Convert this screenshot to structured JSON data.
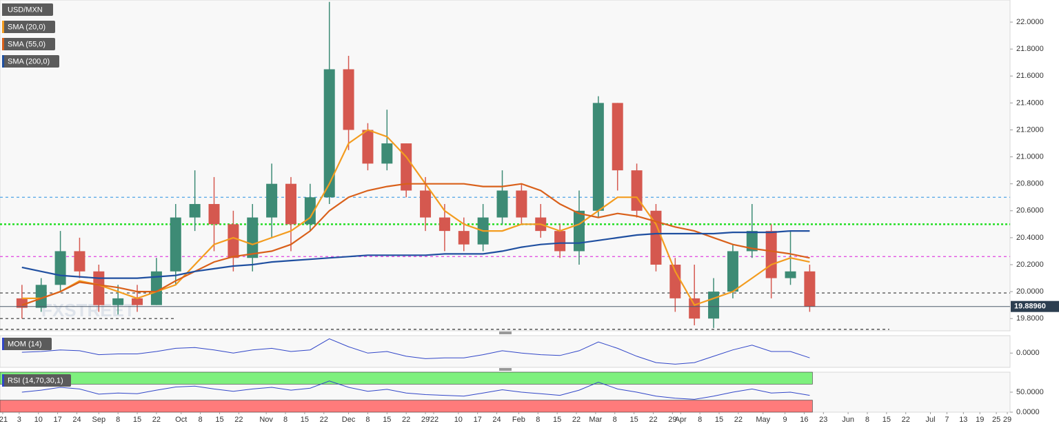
{
  "chart_data": [
    {
      "type": "candlestick",
      "name": "USD/MXN",
      "watermark": "FXSTREET",
      "x": [
        3,
        10,
        17,
        24,
        31,
        38,
        45,
        52,
        59,
        66,
        73,
        80,
        87,
        94,
        101,
        108,
        115,
        122,
        129,
        136,
        143,
        150,
        157,
        164,
        171,
        178,
        185,
        192,
        199,
        206,
        213,
        220,
        227,
        234,
        241,
        248,
        255,
        262,
        269,
        276,
        283,
        290
      ],
      "open": [
        19.95,
        19.88,
        20.05,
        20.3,
        20.15,
        19.9,
        19.95,
        19.9,
        20.15,
        20.55,
        20.65,
        20.5,
        20.25,
        20.55,
        20.8,
        20.5,
        20.7,
        21.65,
        21.2,
        20.95,
        21.1,
        20.75,
        20.55,
        20.45,
        20.35,
        20.55,
        20.75,
        20.55,
        20.45,
        20.3,
        20.6,
        21.4,
        20.9,
        20.6,
        20.2,
        19.95,
        19.8,
        20.0,
        20.3,
        20.45,
        20.1,
        20.15
      ],
      "high": [
        20.05,
        20.1,
        20.45,
        20.4,
        20.2,
        20.05,
        20.05,
        20.25,
        20.65,
        20.9,
        20.85,
        20.6,
        20.65,
        20.95,
        20.85,
        20.8,
        22.15,
        21.75,
        21.25,
        21.35,
        21.1,
        20.85,
        20.65,
        20.55,
        20.65,
        20.9,
        20.8,
        20.65,
        20.5,
        20.75,
        21.45,
        21.4,
        20.95,
        20.65,
        20.25,
        20.2,
        20.1,
        20.35,
        20.65,
        20.5,
        20.45,
        20.2
      ],
      "low": [
        19.8,
        19.85,
        20.0,
        20.1,
        19.85,
        19.83,
        19.85,
        19.9,
        20.05,
        20.45,
        20.3,
        20.15,
        20.15,
        20.4,
        20.3,
        20.45,
        20.65,
        21.05,
        20.9,
        20.9,
        20.7,
        20.45,
        20.3,
        20.3,
        20.3,
        20.5,
        20.5,
        20.4,
        20.25,
        20.2,
        20.55,
        20.75,
        20.55,
        20.15,
        19.85,
        19.75,
        19.73,
        19.95,
        20.25,
        19.95,
        20.05,
        19.85
      ],
      "close": [
        19.88,
        20.05,
        20.3,
        20.15,
        19.9,
        19.95,
        19.9,
        20.15,
        20.55,
        20.65,
        20.5,
        20.25,
        20.55,
        20.8,
        20.5,
        20.7,
        21.65,
        21.2,
        20.95,
        21.1,
        20.75,
        20.55,
        20.45,
        20.35,
        20.55,
        20.75,
        20.55,
        20.45,
        20.3,
        20.6,
        21.4,
        20.9,
        20.6,
        20.2,
        19.95,
        19.8,
        20.0,
        20.3,
        20.45,
        20.1,
        20.15,
        19.89
      ],
      "up_color": "#3d8b75",
      "down_color": "#d5584f",
      "series": [
        {
          "name": "SMA (20,0)",
          "color": "#f39c1f",
          "values": [
            19.95,
            19.95,
            20.0,
            20.08,
            20.05,
            20.0,
            19.95,
            20.0,
            20.05,
            20.2,
            20.35,
            20.4,
            20.35,
            20.4,
            20.45,
            20.55,
            20.8,
            21.1,
            21.2,
            21.15,
            21.0,
            20.8,
            20.6,
            20.5,
            20.45,
            20.45,
            20.5,
            20.5,
            20.45,
            20.5,
            20.6,
            20.7,
            20.7,
            20.5,
            20.15,
            19.9,
            19.95,
            20.0,
            20.1,
            20.2,
            20.25,
            20.22
          ]
        },
        {
          "name": "SMA (55,0)",
          "color": "#d9601a",
          "values": [
            19.9,
            19.95,
            20.0,
            20.07,
            20.05,
            20.03,
            20.0,
            20.0,
            20.08,
            20.15,
            20.22,
            20.26,
            20.28,
            20.3,
            20.35,
            20.45,
            20.6,
            20.7,
            20.75,
            20.78,
            20.8,
            20.8,
            20.8,
            20.8,
            20.78,
            20.78,
            20.8,
            20.75,
            20.65,
            20.58,
            20.55,
            20.58,
            20.56,
            20.52,
            20.48,
            20.45,
            20.4,
            20.35,
            20.32,
            20.3,
            20.28,
            20.25
          ]
        },
        {
          "name": "SMA (200,0)",
          "color": "#1f4fa0",
          "values": [
            20.18,
            20.15,
            20.12,
            20.11,
            20.1,
            20.1,
            20.1,
            20.11,
            20.12,
            20.15,
            20.17,
            20.19,
            20.2,
            20.22,
            20.23,
            20.24,
            20.25,
            20.26,
            20.27,
            20.27,
            20.27,
            20.27,
            20.28,
            20.28,
            20.28,
            20.3,
            20.33,
            20.35,
            20.36,
            20.36,
            20.38,
            20.4,
            20.42,
            20.43,
            20.43,
            20.43,
            20.43,
            20.44,
            20.44,
            20.44,
            20.45,
            20.45
          ]
        }
      ],
      "levels": [
        {
          "value": 20.7,
          "color": "#4da3e6",
          "style": "dashed"
        },
        {
          "value": 20.5,
          "color": "#22dd22",
          "style": "dotted"
        },
        {
          "value": 20.26,
          "color": "#e040e0",
          "style": "dashed"
        },
        {
          "value": 19.99,
          "color": "#333333",
          "style": "dashed"
        },
        {
          "value": 19.8,
          "color": "#333333",
          "style": "dashed",
          "x_end": 59
        },
        {
          "value": 19.72,
          "color": "#333333",
          "style": "dashed",
          "x_end": 319
        }
      ],
      "last_price": {
        "value": 19.8896,
        "label": "19.88960"
      },
      "xlim": [
        -5,
        363
      ],
      "ylim": [
        19.709,
        22.164
      ],
      "yticks": [
        {
          "value": 22,
          "label": "22.0000"
        },
        {
          "value": 21.8,
          "label": "21.8000"
        },
        {
          "value": 21.6,
          "label": "21.6000"
        },
        {
          "value": 21.4,
          "label": "21.4000"
        },
        {
          "value": 21.2,
          "label": "21.2000"
        },
        {
          "value": 21,
          "label": "21.0000"
        },
        {
          "value": 20.8,
          "label": "20.8000"
        },
        {
          "value": 20.6,
          "label": "20.6000"
        },
        {
          "value": 20.4,
          "label": "20.4000"
        },
        {
          "value": 20.2,
          "label": "20.2000"
        },
        {
          "value": 20,
          "label": "20.0000"
        },
        {
          "value": 19.8,
          "label": "19.8000"
        }
      ]
    },
    {
      "type": "line",
      "x": [
        3,
        10,
        17,
        24,
        31,
        38,
        45,
        52,
        59,
        66,
        73,
        80,
        87,
        94,
        101,
        108,
        115,
        122,
        129,
        136,
        143,
        150,
        157,
        164,
        171,
        178,
        185,
        192,
        199,
        206,
        213,
        220,
        227,
        234,
        241,
        248,
        255,
        262,
        269,
        276,
        283,
        290
      ],
      "series": [
        {
          "name": "MOM (14)",
          "color": "#3045c8",
          "values": [
            0.05,
            0.1,
            0.2,
            0.15,
            -0.1,
            -0.05,
            -0.05,
            0.1,
            0.3,
            0.35,
            0.2,
            0.0,
            0.2,
            0.3,
            0.1,
            0.2,
            0.9,
            0.4,
            0.0,
            0.1,
            -0.2,
            -0.35,
            -0.3,
            -0.3,
            -0.1,
            0.15,
            0.0,
            -0.1,
            -0.15,
            0.15,
            0.7,
            0.3,
            -0.2,
            -0.6,
            -0.7,
            -0.6,
            -0.2,
            0.2,
            0.5,
            0.1,
            0.1,
            -0.3
          ]
        }
      ],
      "xlim": [
        -5,
        363
      ],
      "ylim": [
        -0.9,
        1.1
      ],
      "yticks": [
        {
          "value": 0,
          "label": "0.0000"
        }
      ]
    },
    {
      "type": "line",
      "x": [
        3,
        10,
        17,
        24,
        31,
        38,
        45,
        52,
        59,
        66,
        73,
        80,
        87,
        94,
        101,
        108,
        115,
        122,
        129,
        136,
        143,
        150,
        157,
        164,
        171,
        178,
        185,
        192,
        199,
        206,
        213,
        220,
        227,
        234,
        241,
        248,
        255,
        262,
        269,
        276,
        283,
        290
      ],
      "series": [
        {
          "name": "RSI (14,70,30,1)",
          "color": "#3045c8",
          "values": [
            50,
            55,
            62,
            58,
            45,
            48,
            46,
            55,
            63,
            65,
            58,
            52,
            58,
            62,
            55,
            60,
            78,
            62,
            52,
            57,
            48,
            44,
            42,
            40,
            48,
            56,
            50,
            46,
            42,
            55,
            75,
            58,
            50,
            40,
            35,
            32,
            40,
            50,
            58,
            48,
            50,
            42
          ]
        }
      ],
      "bands": [
        {
          "from": 70,
          "to": 100,
          "color": "#7ef07e"
        },
        {
          "from": 0,
          "to": 30,
          "color": "#ff7b7b"
        }
      ],
      "xlim": [
        -5,
        363
      ],
      "ylim": [
        0,
        100
      ],
      "yticks": [
        {
          "value": 50,
          "label": "50.0000"
        },
        {
          "value": 0,
          "label": "0.0000"
        }
      ],
      "xticks": [
        {
          "value": -4,
          "label": "'21"
        },
        {
          "value": 2,
          "label": "3"
        },
        {
          "value": 9,
          "label": "10"
        },
        {
          "value": 16,
          "label": "17"
        },
        {
          "value": 23,
          "label": "24"
        },
        {
          "value": 31,
          "label": "Sep"
        },
        {
          "value": 38,
          "label": "8"
        },
        {
          "value": 45,
          "label": "15"
        },
        {
          "value": 52,
          "label": "22"
        },
        {
          "value": 61,
          "label": "Oct"
        },
        {
          "value": 68,
          "label": "8"
        },
        {
          "value": 75,
          "label": "15"
        },
        {
          "value": 82,
          "label": "22"
        },
        {
          "value": 92,
          "label": "Nov"
        },
        {
          "value": 99,
          "label": "8"
        },
        {
          "value": 106,
          "label": "15"
        },
        {
          "value": 113,
          "label": "22"
        },
        {
          "value": 122,
          "label": "Dec"
        },
        {
          "value": 129,
          "label": "8"
        },
        {
          "value": 136,
          "label": "15"
        },
        {
          "value": 143,
          "label": "22"
        },
        {
          "value": 150,
          "label": "29"
        },
        {
          "value": 153,
          "label": "'22"
        },
        {
          "value": 162,
          "label": "10"
        },
        {
          "value": 169,
          "label": "17"
        },
        {
          "value": 176,
          "label": "24"
        },
        {
          "value": 184,
          "label": "Feb"
        },
        {
          "value": 191,
          "label": "8"
        },
        {
          "value": 198,
          "label": "15"
        },
        {
          "value": 205,
          "label": "22"
        },
        {
          "value": 212,
          "label": "Mar"
        },
        {
          "value": 219,
          "label": "8"
        },
        {
          "value": 226,
          "label": "15"
        },
        {
          "value": 233,
          "label": "22"
        },
        {
          "value": 240,
          "label": "29"
        },
        {
          "value": 243,
          "label": "Apr"
        },
        {
          "value": 250,
          "label": "8"
        },
        {
          "value": 257,
          "label": "15"
        },
        {
          "value": 264,
          "label": "22"
        },
        {
          "value": 273,
          "label": "May"
        },
        {
          "value": 281,
          "label": "9"
        },
        {
          "value": 288,
          "label": "16"
        },
        {
          "value": 295,
          "label": "23"
        },
        {
          "value": 304,
          "label": "Jun"
        },
        {
          "value": 311,
          "label": "8"
        },
        {
          "value": 318,
          "label": "15"
        },
        {
          "value": 325,
          "label": "22"
        },
        {
          "value": 334,
          "label": "Jul"
        },
        {
          "value": 340,
          "label": "7"
        },
        {
          "value": 346,
          "label": "13"
        },
        {
          "value": 352,
          "label": "19"
        },
        {
          "value": 358,
          "label": "25"
        },
        {
          "value": 362,
          "label": "29"
        }
      ]
    }
  ]
}
